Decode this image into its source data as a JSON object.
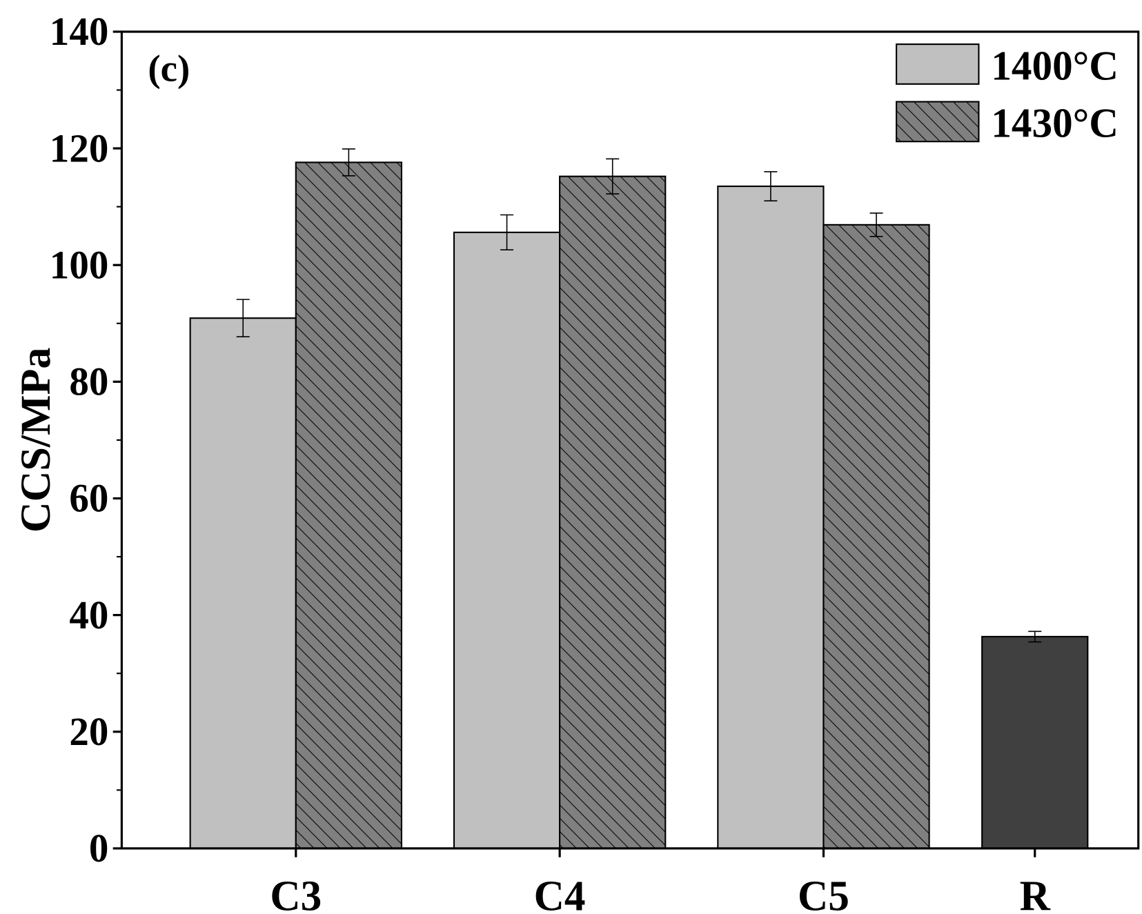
{
  "chart_data": {
    "type": "bar",
    "panel_label": "(c)",
    "ylabel": "CCS/MPa",
    "xlabel": "",
    "ylim": [
      0,
      140
    ],
    "yticks": [
      "0",
      "20",
      "40",
      "60",
      "80",
      "100",
      "120",
      "140"
    ],
    "categories": [
      "C3",
      "C4",
      "C5",
      "R"
    ],
    "legend_position": "top-right",
    "series": [
      {
        "name": "1400°C",
        "color": "#c0c0c0",
        "pattern": "solid",
        "values": [
          90.9,
          105.6,
          113.5,
          null
        ],
        "errors": [
          3.2,
          3.0,
          2.5,
          null
        ]
      },
      {
        "name": "1430°C",
        "color": "#808080",
        "pattern": "diagonal-hatch",
        "values": [
          117.6,
          115.2,
          106.9,
          null
        ],
        "errors": [
          2.3,
          3.0,
          2.0,
          null
        ]
      }
    ],
    "reference": {
      "category": "R",
      "value": 36.3,
      "error": 0.9,
      "color": "#404040"
    }
  }
}
